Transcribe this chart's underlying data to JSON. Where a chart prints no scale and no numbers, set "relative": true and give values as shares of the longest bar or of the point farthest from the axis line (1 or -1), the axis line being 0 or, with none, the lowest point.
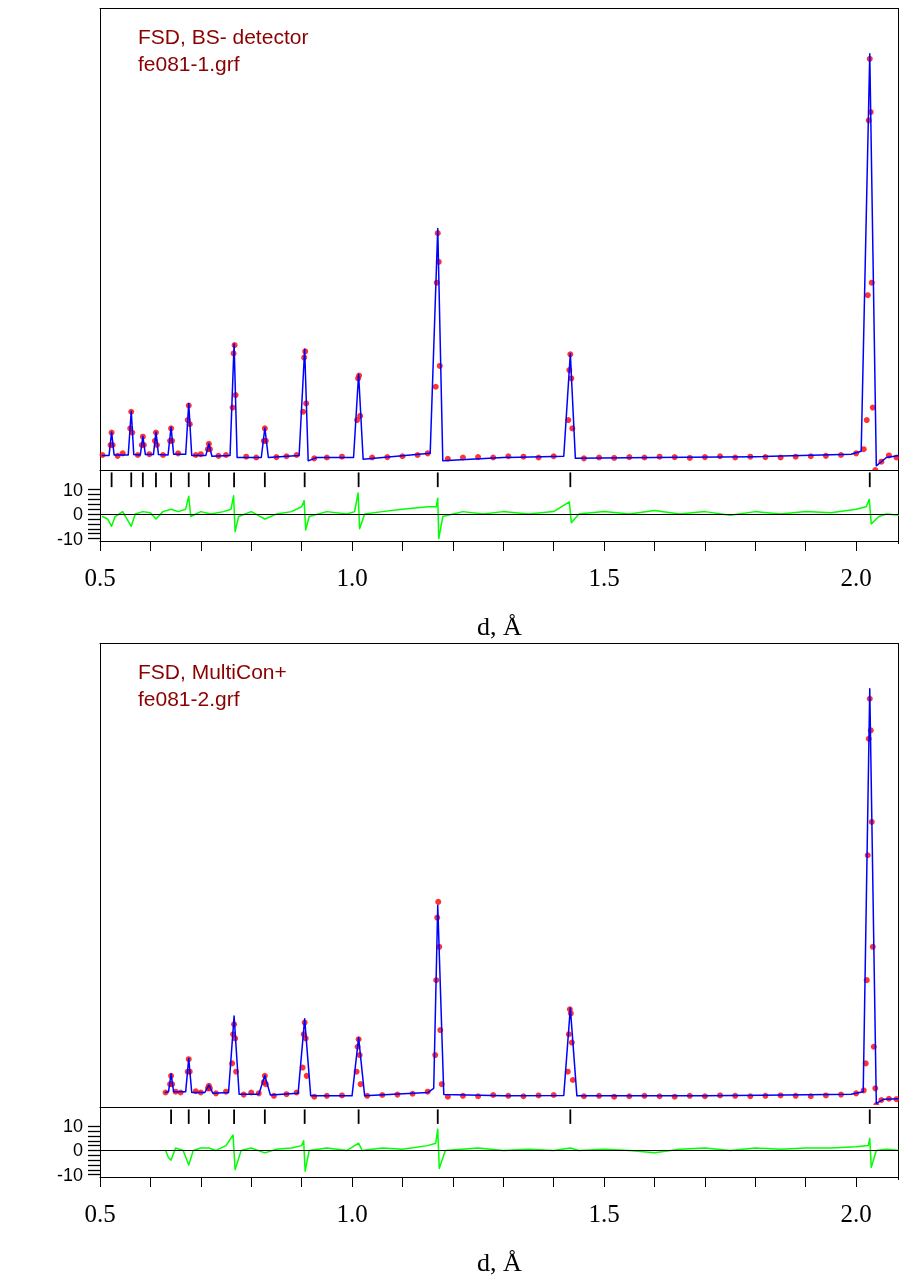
{
  "chart_data": [
    {
      "type": "line",
      "relative": true,
      "xlim": [
        0.5,
        2.085
      ],
      "tick_labels": false,
      "annotations": [
        "FSD, BS- detector",
        "fe081-1.grf"
      ],
      "series": [
        {
          "type": "scatter",
          "marker": "circle",
          "color": "#ff0000",
          "x": [
            0.505,
            0.535,
            0.545,
            0.575,
            0.598,
            0.625,
            0.655,
            0.69,
            0.7,
            0.735,
            0.75,
            0.79,
            0.81,
            0.85,
            0.87,
            0.89,
            0.925,
            0.95,
            0.98,
            1.04,
            1.07,
            1.1,
            1.13,
            1.15,
            1.19,
            1.22,
            1.25,
            1.28,
            1.31,
            1.34,
            1.37,
            1.4,
            1.46,
            1.49,
            1.52,
            1.55,
            1.58,
            1.61,
            1.64,
            1.67,
            1.7,
            1.73,
            1.76,
            1.79,
            1.82,
            1.85,
            1.88,
            1.91,
            1.94,
            1.97,
            2.0,
            2.015,
            2.038,
            2.05,
            2.065,
            2.08,
            0.521,
            0.523,
            0.525,
            0.56,
            0.562,
            0.564,
            0.583,
            0.585,
            0.587,
            0.609,
            0.611,
            0.613,
            0.639,
            0.641,
            0.643,
            0.674,
            0.676,
            0.678,
            0.714,
            0.716,
            0.718,
            0.763,
            0.765,
            0.767,
            0.769,
            0.825,
            0.827,
            0.829,
            0.903,
            0.905,
            0.907,
            0.909,
            1.01,
            1.012,
            1.014,
            1.016,
            1.166,
            1.168,
            1.17,
            1.172,
            1.174,
            1.429,
            1.431,
            1.433,
            1.435,
            1.437,
            2.021,
            2.023,
            2.025,
            2.027,
            2.029,
            2.031,
            2.033
          ],
          "values": [
            0.036,
            0.034,
            0.04,
            0.036,
            0.038,
            0.036,
            0.04,
            0.036,
            0.038,
            0.034,
            0.036,
            0.032,
            0.03,
            0.031,
            0.033,
            0.036,
            0.028,
            0.03,
            0.032,
            0.03,
            0.031,
            0.033,
            0.036,
            0.04,
            0.027,
            0.03,
            0.031,
            0.03,
            0.033,
            0.032,
            0.03,
            0.033,
            0.028,
            0.03,
            0.029,
            0.031,
            0.03,
            0.032,
            0.031,
            0.029,
            0.031,
            0.033,
            0.03,
            0.032,
            0.031,
            0.03,
            0.032,
            0.033,
            0.034,
            0.036,
            0.04,
            0.05,
            0.0,
            0.02,
            0.035,
            0.03,
            0.06,
            0.09,
            0.06,
            0.1,
            0.14,
            0.09,
            0.06,
            0.08,
            0.06,
            0.07,
            0.09,
            0.06,
            0.07,
            0.1,
            0.07,
            0.12,
            0.155,
            0.11,
            0.05,
            0.063,
            0.05,
            0.15,
            0.28,
            0.3,
            0.18,
            0.07,
            0.1,
            0.07,
            0.14,
            0.27,
            0.285,
            0.16,
            0.12,
            0.22,
            0.227,
            0.13,
            0.2,
            0.45,
            0.569,
            0.5,
            0.25,
            0.12,
            0.24,
            0.278,
            0.22,
            0.1,
            0.12,
            0.42,
            0.84,
            0.988,
            0.86,
            0.45,
            0.15
          ]
        },
        {
          "marker": "none",
          "color": "#0000ff",
          "x": [
            0.505,
            0.518,
            0.523,
            0.528,
            0.556,
            0.562,
            0.567,
            0.58,
            0.585,
            0.59,
            0.606,
            0.611,
            0.616,
            0.635,
            0.641,
            0.646,
            0.67,
            0.676,
            0.682,
            0.71,
            0.716,
            0.722,
            0.758,
            0.766,
            0.772,
            0.82,
            0.827,
            0.834,
            0.895,
            0.906,
            0.913,
            0.93,
            1.003,
            1.013,
            1.022,
            1.155,
            1.17,
            1.18,
            1.3,
            1.42,
            1.433,
            1.443,
            1.6,
            1.8,
            1.99,
            2.01,
            2.027,
            2.04,
            2.06,
            2.085
          ],
          "values": [
            0.035,
            0.035,
            0.091,
            0.036,
            0.036,
            0.141,
            0.037,
            0.036,
            0.081,
            0.037,
            0.037,
            0.091,
            0.037,
            0.036,
            0.103,
            0.038,
            0.038,
            0.16,
            0.035,
            0.035,
            0.063,
            0.033,
            0.035,
            0.303,
            0.03,
            0.03,
            0.101,
            0.03,
            0.035,
            0.29,
            0.022,
            0.03,
            0.03,
            0.23,
            0.026,
            0.04,
            0.58,
            0.022,
            0.03,
            0.033,
            0.28,
            0.028,
            0.03,
            0.032,
            0.038,
            0.045,
            1.0,
            0.01,
            0.03,
            0.035
          ]
        }
      ]
    },
    {
      "type": "line",
      "xlabel": "d, Å",
      "xlim": [
        0.5,
        2.085
      ],
      "xticks": [
        {
          "value": 0.5,
          "label": "0.5"
        },
        {
          "value": 0.6,
          "label": null
        },
        {
          "value": 0.7,
          "label": null
        },
        {
          "value": 0.8,
          "label": null
        },
        {
          "value": 0.9,
          "label": null
        },
        {
          "value": 1.0,
          "label": "1.0"
        },
        {
          "value": 1.1,
          "label": null
        },
        {
          "value": 1.2,
          "label": null
        },
        {
          "value": 1.3,
          "label": null
        },
        {
          "value": 1.4,
          "label": null
        },
        {
          "value": 1.5,
          "label": "1.5"
        },
        {
          "value": 1.6,
          "label": null
        },
        {
          "value": 1.7,
          "label": null
        },
        {
          "value": 1.8,
          "label": null
        },
        {
          "value": 1.9,
          "label": null
        },
        {
          "value": 2.0,
          "label": "2.0"
        }
      ],
      "ylim": [
        -11,
        18
      ],
      "yticks": [
        -10,
        {
          "value": -8,
          "label": null
        },
        {
          "value": -6,
          "label": null
        },
        {
          "value": -4,
          "label": null
        },
        {
          "value": -2,
          "label": null
        },
        0,
        {
          "value": 2,
          "label": null
        },
        {
          "value": 4,
          "label": null
        },
        {
          "value": 6,
          "label": null
        },
        {
          "value": 8,
          "label": null
        },
        10
      ],
      "ref_lines": [
        {
          "axis": "y",
          "value": 0,
          "color": "#000000"
        }
      ],
      "series": [
        {
          "marker": "none",
          "color": "#00ff00",
          "x": [
            0.505,
            0.515,
            0.523,
            0.53,
            0.545,
            0.562,
            0.57,
            0.585,
            0.6,
            0.611,
            0.625,
            0.641,
            0.655,
            0.67,
            0.676,
            0.68,
            0.7,
            0.72,
            0.745,
            0.76,
            0.765,
            0.768,
            0.775,
            0.8,
            0.827,
            0.85,
            0.88,
            0.9,
            0.905,
            0.908,
            0.915,
            0.95,
            0.99,
            1.005,
            1.012,
            1.015,
            1.025,
            1.06,
            1.1,
            1.15,
            1.167,
            1.17,
            1.172,
            1.18,
            1.22,
            1.26,
            1.3,
            1.35,
            1.4,
            1.431,
            1.435,
            1.45,
            1.5,
            1.55,
            1.6,
            1.65,
            1.7,
            1.75,
            1.8,
            1.85,
            1.9,
            1.95,
            2.0,
            2.02,
            2.026,
            2.03,
            2.045,
            2.06,
            2.085
          ],
          "values": [
            -1,
            -2,
            -5,
            -1,
            1,
            -5,
            0,
            1,
            0.5,
            -2,
            1,
            2,
            1,
            2,
            7.3,
            -1,
            1,
            0,
            1,
            2,
            7.5,
            -7.2,
            -1,
            1,
            -2,
            0,
            1,
            3,
            5.5,
            -6.5,
            -1,
            1,
            0,
            1,
            8.6,
            -6,
            0,
            1,
            2,
            3,
            3,
            6.5,
            -10,
            -1,
            1,
            0,
            1,
            0,
            1,
            5,
            -3.5,
            0,
            1,
            0,
            1.5,
            0,
            1,
            -0.5,
            1,
            0,
            1,
            0.5,
            2,
            3,
            6,
            -4,
            -1,
            0,
            -0.5
          ]
        },
        {
          "type": "bar",
          "color": "#000000",
          "x": [
            0.523,
            0.562,
            0.585,
            0.611,
            0.641,
            0.676,
            0.716,
            0.766,
            0.827,
            0.906,
            1.013,
            1.17,
            1.433,
            2.027
          ],
          "base": [
            11,
            11,
            11,
            11,
            11,
            11,
            11,
            11,
            11,
            11,
            11,
            11,
            11,
            11
          ],
          "values": [
            6,
            6,
            6,
            6,
            6,
            6,
            6,
            6,
            6,
            6,
            6,
            6,
            6,
            6
          ]
        }
      ]
    },
    {
      "type": "line",
      "relative": true,
      "xlim": [
        0.5,
        2.085
      ],
      "tick_labels": false,
      "annotations": [
        "FSD, MultiCon+",
        "fe081-2.grf"
      ],
      "series": [
        {
          "type": "scatter",
          "marker": "circle",
          "color": "#ff0000",
          "x": [
            0.63,
            0.65,
            0.66,
            0.69,
            0.7,
            0.73,
            0.75,
            0.785,
            0.8,
            0.815,
            0.845,
            0.87,
            0.89,
            0.925,
            0.95,
            0.98,
            1.03,
            1.06,
            1.09,
            1.12,
            1.15,
            1.19,
            1.22,
            1.25,
            1.28,
            1.31,
            1.34,
            1.37,
            1.4,
            1.46,
            1.49,
            1.52,
            1.55,
            1.58,
            1.61,
            1.64,
            1.67,
            1.7,
            1.73,
            1.76,
            1.79,
            1.82,
            1.85,
            1.88,
            1.91,
            1.94,
            1.97,
            2.0,
            2.015,
            2.04,
            2.05,
            2.065,
            2.08,
            0.639,
            0.641,
            0.643,
            0.674,
            0.676,
            0.678,
            0.714,
            0.716,
            0.718,
            0.762,
            0.764,
            0.766,
            0.768,
            0.77,
            0.825,
            0.827,
            0.829,
            0.902,
            0.904,
            0.906,
            0.908,
            0.91,
            1.009,
            1.011,
            1.013,
            1.015,
            1.017,
            1.165,
            1.167,
            1.169,
            1.171,
            1.173,
            1.175,
            1.178,
            1.428,
            1.43,
            1.432,
            1.434,
            1.436,
            1.438,
            2.019,
            2.021,
            2.023,
            2.025,
            2.027,
            2.029,
            2.031,
            2.033,
            2.035,
            2.038
          ],
          "values": [
            0.03,
            0.032,
            0.03,
            0.033,
            0.03,
            0.028,
            0.032,
            0.025,
            0.03,
            0.028,
            0.022,
            0.026,
            0.03,
            0.02,
            0.022,
            0.023,
            0.022,
            0.024,
            0.025,
            0.027,
            0.032,
            0.02,
            0.022,
            0.021,
            0.024,
            0.022,
            0.021,
            0.023,
            0.024,
            0.021,
            0.022,
            0.02,
            0.021,
            0.022,
            0.021,
            0.02,
            0.022,
            0.021,
            0.023,
            0.022,
            0.021,
            0.022,
            0.023,
            0.022,
            0.021,
            0.023,
            0.025,
            0.028,
            0.035,
            0.0,
            0.012,
            0.015,
            0.014,
            0.05,
            0.07,
            0.05,
            0.08,
            0.11,
            0.08,
            0.04,
            0.046,
            0.04,
            0.1,
            0.17,
            0.194,
            0.16,
            0.08,
            0.055,
            0.07,
            0.05,
            0.09,
            0.17,
            0.198,
            0.16,
            0.07,
            0.08,
            0.14,
            0.158,
            0.12,
            0.05,
            0.12,
            0.3,
            0.45,
            0.488,
            0.38,
            0.18,
            0.05,
            0.08,
            0.17,
            0.23,
            0.22,
            0.15,
            0.06,
            0.1,
            0.3,
            0.6,
            0.88,
            0.976,
            0.9,
            0.68,
            0.38,
            0.14,
            0.04
          ]
        },
        {
          "marker": "none",
          "color": "#0000ff",
          "x": [
            0.63,
            0.636,
            0.641,
            0.646,
            0.67,
            0.676,
            0.682,
            0.708,
            0.716,
            0.724,
            0.755,
            0.766,
            0.776,
            0.815,
            0.827,
            0.838,
            0.893,
            0.906,
            0.918,
            1.0,
            1.013,
            1.025,
            1.15,
            1.162,
            1.17,
            1.182,
            1.3,
            1.42,
            1.433,
            1.446,
            1.7,
            1.99,
            2.014,
            2.027,
            2.04,
            2.055,
            2.085
          ],
          "values": [
            0.03,
            0.032,
            0.075,
            0.032,
            0.032,
            0.112,
            0.03,
            0.03,
            0.048,
            0.028,
            0.03,
            0.214,
            0.026,
            0.026,
            0.071,
            0.024,
            0.028,
            0.207,
            0.022,
            0.022,
            0.162,
            0.022,
            0.03,
            0.04,
            0.48,
            0.025,
            0.022,
            0.023,
            0.233,
            0.022,
            0.022,
            0.026,
            0.032,
            1.0,
            0.004,
            0.014,
            0.015
          ]
        }
      ]
    },
    {
      "type": "line",
      "xlabel": "d, Å",
      "xlim": [
        0.5,
        2.085
      ],
      "xticks": [
        {
          "value": 0.5,
          "label": "0.5"
        },
        {
          "value": 0.6,
          "label": null
        },
        {
          "value": 0.7,
          "label": null
        },
        {
          "value": 0.8,
          "label": null
        },
        {
          "value": 0.9,
          "label": null
        },
        {
          "value": 1.0,
          "label": "1.0"
        },
        {
          "value": 1.1,
          "label": null
        },
        {
          "value": 1.2,
          "label": null
        },
        {
          "value": 1.3,
          "label": null
        },
        {
          "value": 1.4,
          "label": null
        },
        {
          "value": 1.5,
          "label": "1.5"
        },
        {
          "value": 1.6,
          "label": null
        },
        {
          "value": 1.7,
          "label": null
        },
        {
          "value": 1.8,
          "label": null
        },
        {
          "value": 1.9,
          "label": null
        },
        {
          "value": 2.0,
          "label": "2.0"
        }
      ],
      "ylim": [
        -11,
        18
      ],
      "yticks": [
        -10,
        {
          "value": -8,
          "label": null
        },
        {
          "value": -6,
          "label": null
        },
        {
          "value": -4,
          "label": null
        },
        {
          "value": -2,
          "label": null
        },
        0,
        {
          "value": 2,
          "label": null
        },
        {
          "value": 4,
          "label": null
        },
        {
          "value": 6,
          "label": null
        },
        {
          "value": 8,
          "label": null
        },
        10
      ],
      "ref_lines": [
        {
          "axis": "y",
          "value": 0,
          "color": "#000000"
        }
      ],
      "series": [
        {
          "marker": "none",
          "color": "#00ff00",
          "x": [
            0.63,
            0.636,
            0.641,
            0.65,
            0.665,
            0.676,
            0.685,
            0.7,
            0.716,
            0.73,
            0.75,
            0.764,
            0.768,
            0.78,
            0.8,
            0.827,
            0.85,
            0.88,
            0.9,
            0.904,
            0.907,
            0.915,
            0.95,
            0.99,
            1.013,
            1.02,
            1.06,
            1.1,
            1.15,
            1.166,
            1.17,
            1.173,
            1.185,
            1.25,
            1.3,
            1.35,
            1.4,
            1.433,
            1.45,
            1.5,
            1.55,
            1.6,
            1.65,
            1.7,
            1.75,
            1.8,
            1.85,
            1.9,
            1.95,
            2.0,
            2.024,
            2.027,
            2.03,
            2.04,
            2.06,
            2.085
          ],
          "values": [
            0,
            -3,
            -4,
            1,
            0,
            -6,
            0,
            1,
            1,
            0,
            2,
            6.4,
            -8,
            0,
            1,
            -1,
            0.5,
            1,
            2,
            4,
            -8.6,
            0,
            1,
            0,
            3,
            0,
            1,
            0.5,
            2,
            3,
            8.8,
            -7.5,
            0,
            1,
            0,
            0.5,
            0,
            1,
            0,
            0.5,
            0,
            -1,
            0.5,
            1,
            0,
            1,
            0.5,
            1,
            1,
            1.5,
            2,
            5,
            -7,
            0,
            0.5,
            0
          ]
        },
        {
          "type": "bar",
          "color": "#000000",
          "x": [
            0.641,
            0.676,
            0.716,
            0.766,
            0.827,
            0.906,
            1.013,
            1.17,
            1.433,
            2.027
          ],
          "base": [
            11,
            11,
            11,
            11,
            11,
            11,
            11,
            11,
            11,
            11
          ],
          "values": [
            6,
            6,
            6,
            6,
            6,
            6,
            6,
            6,
            6,
            6
          ]
        }
      ]
    }
  ]
}
